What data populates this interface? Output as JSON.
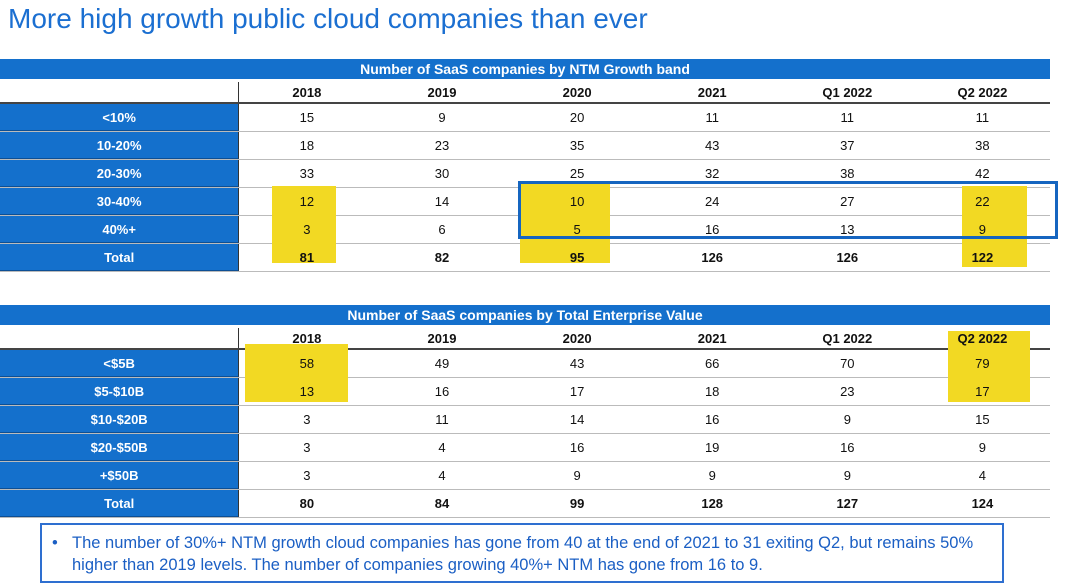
{
  "title": "More high growth public cloud companies than ever",
  "columns": [
    "2018",
    "2019",
    "2020",
    "2021",
    "Q1 2022",
    "Q2 2022"
  ],
  "tables": [
    {
      "title": "Number of SaaS companies by NTM Growth band",
      "rows": [
        {
          "label": "<10%",
          "values": [
            "15",
            "9",
            "20",
            "11",
            "11",
            "11"
          ]
        },
        {
          "label": "10-20%",
          "values": [
            "18",
            "23",
            "35",
            "43",
            "37",
            "38"
          ]
        },
        {
          "label": "20-30%",
          "values": [
            "33",
            "30",
            "25",
            "32",
            "38",
            "42"
          ]
        },
        {
          "label": "30-40%",
          "values": [
            "12",
            "14",
            "10",
            "24",
            "27",
            "22"
          ]
        },
        {
          "label": "40%+",
          "values": [
            "3",
            "6",
            "5",
            "16",
            "13",
            "9"
          ]
        },
        {
          "label": "Total",
          "values": [
            "81",
            "82",
            "95",
            "126",
            "126",
            "122"
          ]
        }
      ]
    },
    {
      "title": "Number of SaaS companies by Total Enterprise Value",
      "rows": [
        {
          "label": "<$5B",
          "values": [
            "58",
            "49",
            "43",
            "66",
            "70",
            "79"
          ]
        },
        {
          "label": "$5-$10B",
          "values": [
            "13",
            "16",
            "17",
            "18",
            "23",
            "17"
          ]
        },
        {
          "label": "$10-$20B",
          "values": [
            "3",
            "11",
            "14",
            "16",
            "9",
            "15"
          ]
        },
        {
          "label": "$20-$50B",
          "values": [
            "3",
            "4",
            "16",
            "19",
            "16",
            "9"
          ]
        },
        {
          "label": "+$50B",
          "values": [
            "3",
            "4",
            "9",
            "9",
            "9",
            "4"
          ]
        },
        {
          "label": "Total",
          "values": [
            "80",
            "84",
            "99",
            "128",
            "127",
            "124"
          ]
        }
      ]
    }
  ],
  "note": "The number of 30%+ NTM growth cloud companies has gone from 40 at the end of 2021 to 31 exiting Q2, but remains 50% higher than 2019 levels. The number of companies growing 40%+ NTM has gone from 16 to 9.",
  "colors": {
    "accent": "#1470cc",
    "highlight": "#f2d923"
  }
}
